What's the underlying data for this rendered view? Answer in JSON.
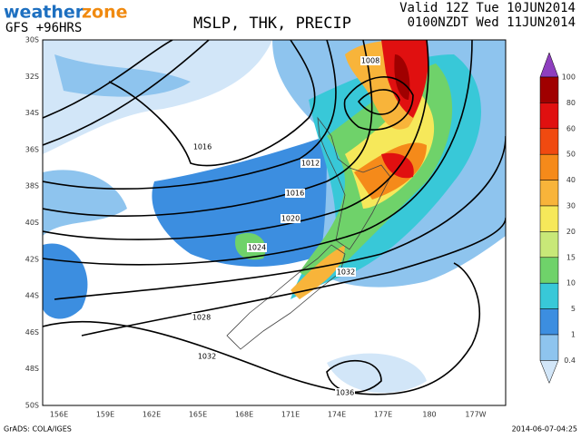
{
  "header": {
    "brand": [
      "weather",
      "zone"
    ],
    "model": "GFS +96HRS",
    "title": "MSLP, THK, PRECIP",
    "valid": "Valid 12Z Tue 10JUN2014",
    "local": "0100NZDT Wed 11JUN2014"
  },
  "map": {
    "lat_labels": [
      "30S",
      "32S",
      "34S",
      "36S",
      "38S",
      "40S",
      "42S",
      "44S",
      "46S",
      "48S",
      "50S"
    ],
    "lon_labels": [
      "156E",
      "159E",
      "162E",
      "165E",
      "168E",
      "171E",
      "174E",
      "177E",
      "180",
      "177W"
    ],
    "isobar_labels": [
      "1008",
      "1012",
      "1016",
      "1016",
      "1020",
      "1024",
      "1028",
      "1032",
      "1032",
      "1036"
    ]
  },
  "legend": {
    "levels": [
      "100",
      "80",
      "60",
      "50",
      "40",
      "30",
      "20",
      "15",
      "10",
      "5",
      "1",
      "0.4"
    ],
    "colors": [
      "#8e3fbf",
      "#a00000",
      "#e01010",
      "#f04a10",
      "#f58a1a",
      "#f8b43a",
      "#f6e85a",
      "#c8e878",
      "#6fd26a",
      "#38c8d8",
      "#3c8ee0",
      "#8ec4ee",
      "#d2e6f8"
    ]
  },
  "footer": {
    "left": "GrADS: COLA/IGES",
    "right": "2014-06-07-04:25"
  }
}
